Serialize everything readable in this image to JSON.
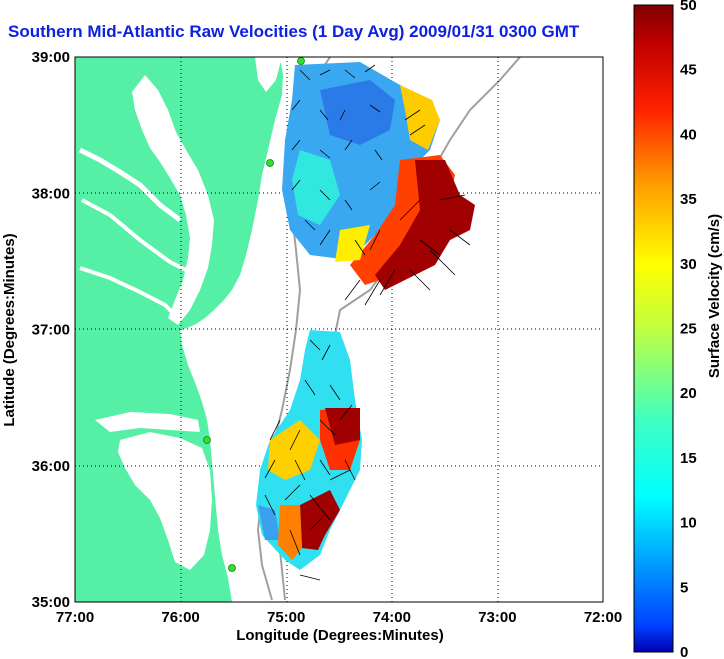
{
  "title": "Southern Mid-Atlantic Raw Velocities (1 Day Avg) 2009/01/31 0300 GMT",
  "xaxis": {
    "label": "Longitude (Degrees:Minutes)",
    "ticks": [
      "77:00",
      "76:00",
      "75:00",
      "74:00",
      "73:00",
      "72:00"
    ],
    "range": [
      -77,
      -72
    ]
  },
  "yaxis": {
    "label": "Latitude (Degrees:Minutes)",
    "ticks": [
      "39:00",
      "38:00",
      "37:00",
      "36:00",
      "35:00"
    ],
    "range": [
      35,
      39
    ]
  },
  "colorbar": {
    "label": "Surface Velocity (cm/s)",
    "ticks": [
      "50",
      "45",
      "40",
      "35",
      "30",
      "25",
      "20",
      "15",
      "10",
      "5",
      "0"
    ],
    "range": [
      0,
      50
    ],
    "colormap": "jet"
  },
  "colors": {
    "land": "#55f0a6",
    "water": "#ffffff",
    "title": "#1020e0",
    "bathymetry": "#a0a0a0",
    "stations": "#30e030"
  },
  "grid": true
}
